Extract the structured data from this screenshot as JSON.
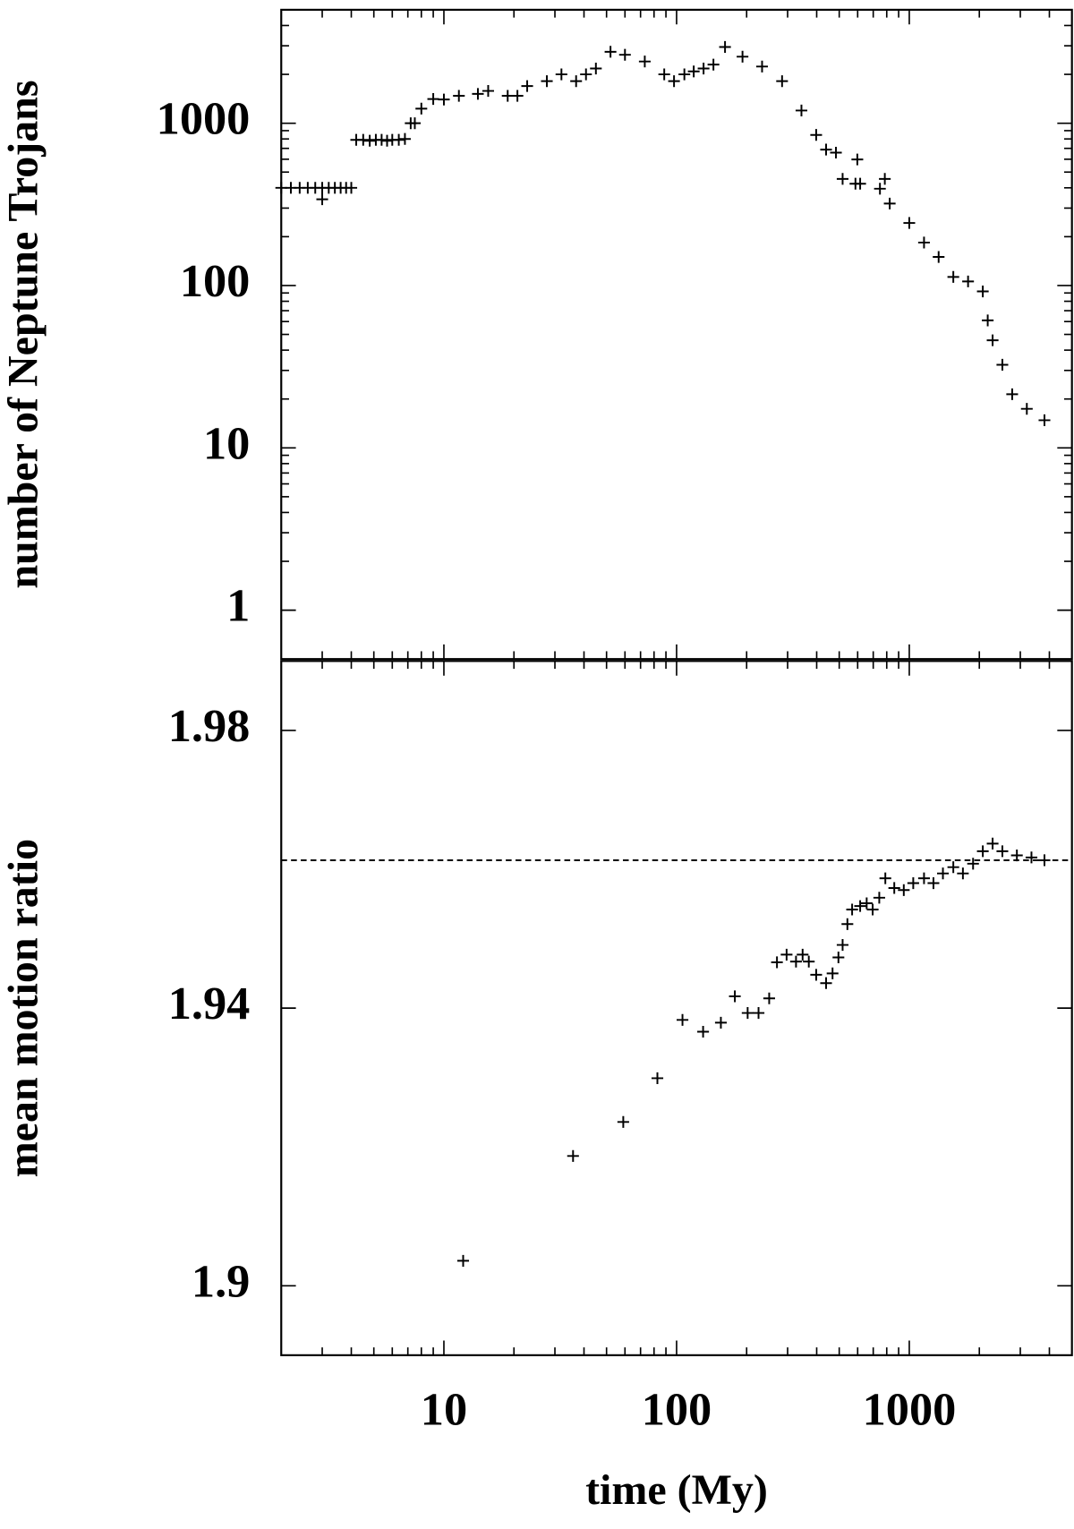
{
  "chart_data": [
    {
      "type": "scatter",
      "ylabel": "number of Neptune Trojans",
      "xlog": true,
      "ylog": true,
      "color": "#000000",
      "xlim": [
        2,
        5000
      ],
      "ylim": [
        0.5,
        5000
      ],
      "xticks": [
        10,
        100,
        1000
      ],
      "show_xtick_labels": false,
      "xminorticks": [
        3,
        4,
        5,
        6,
        7,
        8,
        9,
        20,
        30,
        40,
        50,
        60,
        70,
        80,
        90,
        200,
        300,
        400,
        500,
        600,
        700,
        800,
        900,
        2000,
        3000,
        4000
      ],
      "yticks": [
        1,
        10,
        100,
        1000
      ],
      "yminorticks": [
        2,
        3,
        4,
        5,
        6,
        7,
        8,
        9,
        20,
        30,
        40,
        50,
        60,
        70,
        80,
        90,
        200,
        300,
        400,
        500,
        600,
        700,
        800,
        900,
        2000,
        3000,
        4000
      ],
      "x": [
        2.0,
        2.2,
        2.4,
        2.6,
        2.8,
        3.0,
        3.0,
        3.2,
        3.4,
        3.6,
        3.8,
        4.0,
        4.2,
        4.5,
        4.8,
        5.1,
        5.4,
        5.7,
        6.0,
        6.4,
        6.8,
        7.2,
        7.5,
        8,
        9,
        10,
        11.6,
        14.0,
        15.5,
        18.8,
        20.7,
        22.8,
        27.7,
        32,
        37,
        40.8,
        45,
        52,
        60,
        73,
        88.5,
        97.5,
        108,
        118.5,
        130.6,
        144,
        161.5,
        192,
        233,
        284,
        344,
        398,
        439,
        484,
        517,
        587,
        598,
        615,
        748,
        785,
        824,
        1000,
        1157,
        1337,
        1546,
        1789,
        2070,
        2173,
        2281,
        2512,
        2768,
        3200,
        3810
      ],
      "values": [
        400,
        400,
        400,
        400,
        400,
        400,
        340,
        400,
        400,
        400,
        400,
        400,
        790,
        790,
        780,
        790,
        790,
        780,
        790,
        790,
        800,
        1000,
        1000,
        1230,
        1410,
        1400,
        1475,
        1516,
        1581,
        1475,
        1475,
        1694,
        1816,
        2000,
        1816,
        2000,
        2173,
        2755,
        2640,
        2400,
        2000,
        1816,
        2000,
        2085,
        2173,
        2297,
        2950,
        2570,
        2235,
        1816,
        1198,
        847,
        688,
        659,
        454,
        424,
        598,
        424,
        395,
        454,
        320,
        243,
        184,
        150,
        113,
        106,
        92,
        61,
        46,
        32.5,
        21.4,
        17.4,
        14.8
      ]
    },
    {
      "type": "scatter",
      "xlabel": "time (My)",
      "ylabel": "mean motion ratio",
      "xlog": true,
      "color": "#000000",
      "xlim": [
        2,
        5000
      ],
      "ylim": [
        1.89,
        1.99
      ],
      "xticks": [
        10,
        100,
        1000
      ],
      "show_xtick_labels": true,
      "xminorticks": [
        3,
        4,
        5,
        6,
        7,
        8,
        9,
        20,
        30,
        40,
        50,
        60,
        70,
        80,
        90,
        200,
        300,
        400,
        500,
        600,
        700,
        800,
        900,
        2000,
        3000,
        4000
      ],
      "yticks": [
        1.9,
        1.94,
        1.98
      ],
      "reference_line": 1.9613,
      "x": [
        12.1,
        35.9,
        59,
        82.7,
        106,
        130,
        155,
        178,
        202,
        225,
        250,
        270,
        297,
        326,
        348,
        370,
        398,
        439,
        468,
        496,
        517,
        542,
        568,
        615,
        656,
        696,
        743,
        789,
        862,
        947,
        1040,
        1157,
        1270,
        1395,
        1546,
        1700,
        1880,
        2070,
        2281,
        2512,
        2900,
        3350,
        3810
      ],
      "values": [
        1.9036,
        1.9187,
        1.9236,
        1.9299,
        1.9383,
        1.9366,
        1.9379,
        1.9417,
        1.9393,
        1.9393,
        1.9414,
        1.9466,
        1.9477,
        1.9467,
        1.9477,
        1.9467,
        1.9448,
        1.9436,
        1.945,
        1.9473,
        1.9491,
        1.9521,
        1.9542,
        1.9547,
        1.9551,
        1.9542,
        1.9559,
        1.9587,
        1.9573,
        1.957,
        1.958,
        1.9587,
        1.958,
        1.9594,
        1.9603,
        1.9594,
        1.9608,
        1.9626,
        1.9637,
        1.9626,
        1.962,
        1.9617,
        1.9613
      ]
    }
  ]
}
